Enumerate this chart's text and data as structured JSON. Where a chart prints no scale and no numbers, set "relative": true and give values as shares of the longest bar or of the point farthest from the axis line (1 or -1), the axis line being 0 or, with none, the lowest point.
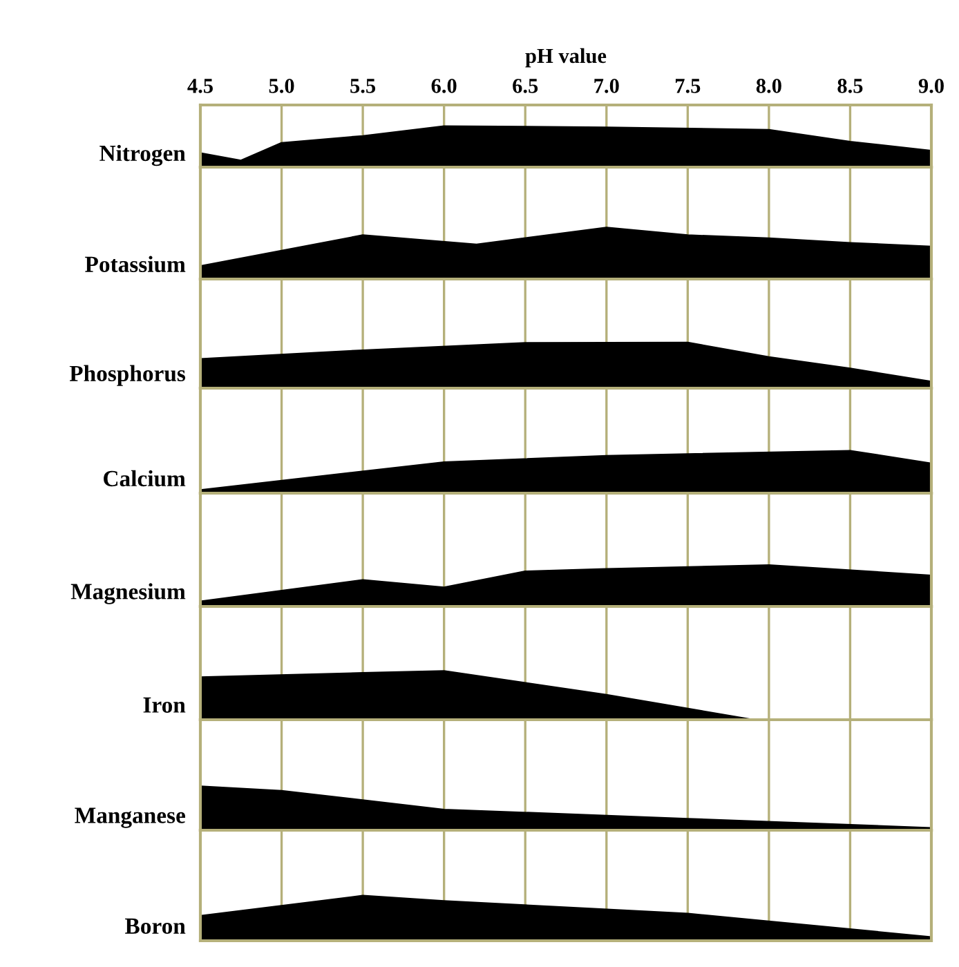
{
  "chart_data": [
    {
      "type": "area",
      "relative": true,
      "xlabel": "pH value",
      "ylabel": "Nitrogen",
      "color": "#000000",
      "grid": "x",
      "tick_labels": "x",
      "xlim": [
        4.5,
        9.0
      ],
      "xticks": [
        4.5,
        {
          "value": 5.0,
          "label": "5.0"
        },
        5.5,
        {
          "value": 6.0,
          "label": "6.0"
        },
        6.5,
        {
          "value": 7.0,
          "label": "7.0"
        },
        7.5,
        {
          "value": 8.0,
          "label": "8.0"
        },
        8.5,
        {
          "value": 9.0,
          "label": "9.0"
        }
      ],
      "x": [
        4.5,
        4.75,
        5.0,
        5.5,
        6.0,
        7.0,
        8.0,
        8.5,
        9.0
      ],
      "values": [
        0.34,
        0.16,
        0.59,
        0.76,
        1,
        0.97,
        0.91,
        0.62,
        0.4
      ]
    },
    {
      "type": "area",
      "relative": true,
      "ylabel": "Potassium",
      "color": "#000000",
      "grid": "x",
      "tick_labels": false,
      "xlim": [
        4.5,
        9.0
      ],
      "x": [
        4.5,
        5.5,
        6.2,
        7.0,
        7.5,
        8.0,
        8.5,
        9.0
      ],
      "values": [
        0.25,
        0.85,
        0.67,
        1,
        0.85,
        0.79,
        0.7,
        0.63
      ]
    },
    {
      "type": "area",
      "relative": true,
      "ylabel": "Phosphorus",
      "color": "#000000",
      "grid": "x",
      "tick_labels": false,
      "xlim": [
        4.5,
        9.0
      ],
      "x": [
        4.5,
        5.5,
        6.5,
        7.5,
        8.0,
        8.5,
        9.0
      ],
      "values": [
        0.64,
        0.83,
        0.99,
        1,
        0.68,
        0.43,
        0.14
      ]
    },
    {
      "type": "area",
      "relative": true,
      "ylabel": "Calcium",
      "color": "#000000",
      "grid": "x",
      "tick_labels": false,
      "xlim": [
        4.5,
        9.0
      ],
      "x": [
        4.5,
        6.0,
        7.0,
        8.5,
        9.0
      ],
      "values": [
        0.07,
        0.73,
        0.88,
        1,
        0.7
      ]
    },
    {
      "type": "area",
      "relative": true,
      "ylabel": "Magnesium",
      "color": "#000000",
      "grid": "x",
      "tick_labels": false,
      "xlim": [
        4.5,
        9.0
      ],
      "x": [
        4.5,
        5.5,
        6.0,
        6.5,
        7.0,
        8.0,
        9.0
      ],
      "values": [
        0.12,
        0.64,
        0.46,
        0.85,
        0.91,
        1,
        0.75
      ]
    },
    {
      "type": "area",
      "relative": true,
      "ylabel": "Iron",
      "color": "#000000",
      "grid": "x",
      "tick_labels": false,
      "xlim": [
        4.5,
        9.0
      ],
      "x": [
        4.5,
        5.5,
        6.0,
        7.0,
        7.9,
        9.0
      ],
      "values": [
        0.87,
        0.96,
        1,
        0.51,
        0,
        0
      ]
    },
    {
      "type": "area",
      "relative": true,
      "ylabel": "Manganese",
      "color": "#000000",
      "grid": "x",
      "tick_labels": false,
      "xlim": [
        4.5,
        9.0
      ],
      "x": [
        4.5,
        5.0,
        6.0,
        7.5,
        9.0
      ],
      "values": [
        1,
        0.9,
        0.47,
        0.26,
        0.05
      ]
    },
    {
      "type": "area",
      "relative": true,
      "ylabel": "Boron",
      "color": "#000000",
      "grid": "x",
      "tick_labels": false,
      "xlim": [
        4.5,
        9.0
      ],
      "x": [
        4.5,
        5.5,
        6.0,
        7.5,
        9.0
      ],
      "values": [
        0.55,
        1,
        0.88,
        0.6,
        0.08
      ]
    }
  ]
}
